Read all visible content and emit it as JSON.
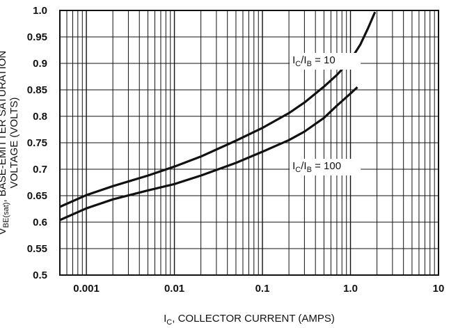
{
  "chart_data": {
    "type": "line",
    "x_scale": "log",
    "xlim": [
      0.0005,
      10
    ],
    "ylim": [
      0.5,
      1.0
    ],
    "grid": true,
    "x_ticks": [
      0.001,
      0.01,
      0.1,
      1.0,
      10
    ],
    "x_tick_labels": [
      "0.001",
      "0.01",
      "0.1",
      "1.0",
      "10"
    ],
    "y_ticks": [
      0.5,
      0.55,
      0.6,
      0.65,
      0.7,
      0.75,
      0.8,
      0.85,
      0.9,
      0.95,
      1.0
    ],
    "y_tick_labels": [
      "0.5",
      "0.55",
      "0.6",
      "0.65",
      "0.7",
      "0.75",
      "0.8",
      "0.85",
      "0.9",
      "0.95",
      "1.0"
    ],
    "xlabel": {
      "prefix": "I",
      "sub": "C",
      "rest": ", COLLECTOR CURRENT (AMPS)"
    },
    "ylabel": {
      "line1": {
        "prefix": "V",
        "sub": "BE(sat)",
        "rest": ", BASE-EMITTER SATURATION"
      },
      "line2": "VOLTAGE (VOLTS)"
    },
    "series": [
      {
        "label": {
          "a": "I",
          "a_sub": "C",
          "b": "/I",
          "b_sub": "B",
          "rest": " = 10"
        },
        "label_anchor": {
          "x": 0.2,
          "y": 0.9
        },
        "x": [
          0.0005,
          0.001,
          0.002,
          0.005,
          0.01,
          0.02,
          0.05,
          0.1,
          0.2,
          0.3,
          0.5,
          0.7,
          1.0,
          1.3,
          1.6,
          1.9
        ],
        "y": [
          0.629,
          0.651,
          0.668,
          0.688,
          0.705,
          0.724,
          0.754,
          0.778,
          0.806,
          0.826,
          0.856,
          0.878,
          0.906,
          0.936,
          0.968,
          0.997
        ]
      },
      {
        "label": {
          "a": "I",
          "a_sub": "C",
          "b": "/I",
          "b_sub": "B",
          "rest": " = 100"
        },
        "label_anchor": {
          "x": 0.2,
          "y": 0.7
        },
        "x": [
          0.0005,
          0.001,
          0.002,
          0.005,
          0.01,
          0.02,
          0.05,
          0.1,
          0.2,
          0.3,
          0.5,
          0.7,
          1.0,
          1.2
        ],
        "y": [
          0.604,
          0.626,
          0.643,
          0.66,
          0.672,
          0.688,
          0.712,
          0.733,
          0.755,
          0.771,
          0.797,
          0.82,
          0.843,
          0.855
        ]
      }
    ]
  }
}
